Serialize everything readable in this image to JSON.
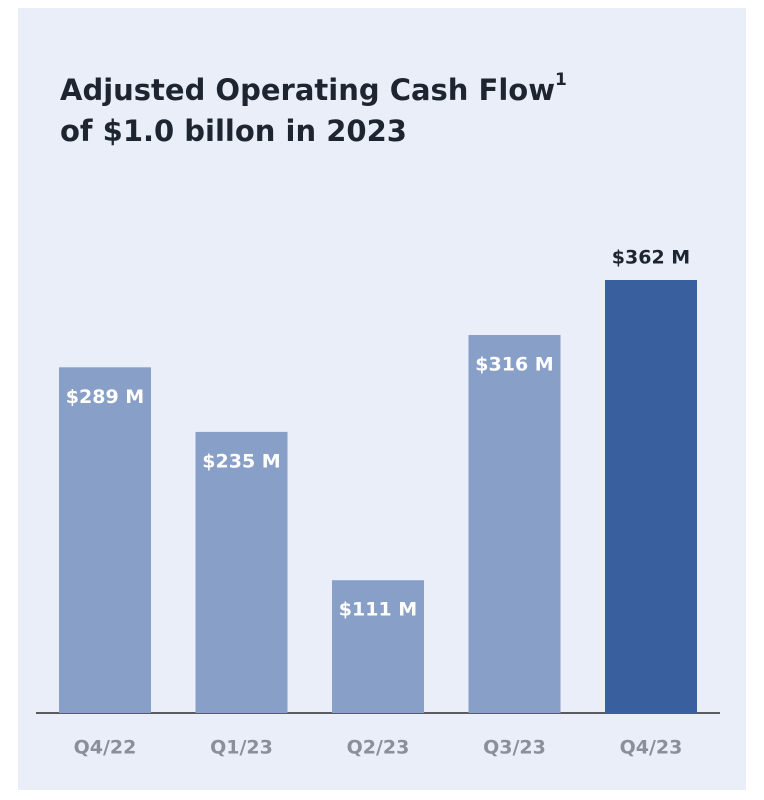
{
  "chart_data": {
    "type": "bar",
    "title": [
      "Adjusted Operating Cash Flow",
      "of $1.0 billon in 2023"
    ],
    "title_footnote": "1",
    "categories": [
      "Q4/22",
      "Q1/23",
      "Q2/23",
      "Q3/23",
      "Q4/23"
    ],
    "values": [
      289,
      235,
      111,
      316,
      362
    ],
    "value_labels": [
      "$289 M",
      "$235 M",
      "$111 M",
      "$316 M",
      "$362 M"
    ],
    "colors": [
      "#889fc8",
      "#889fc8",
      "#889fc8",
      "#889fc8",
      "#3a5f9e"
    ],
    "label_positions": [
      "inside",
      "inside",
      "inside",
      "inside",
      "above"
    ]
  }
}
